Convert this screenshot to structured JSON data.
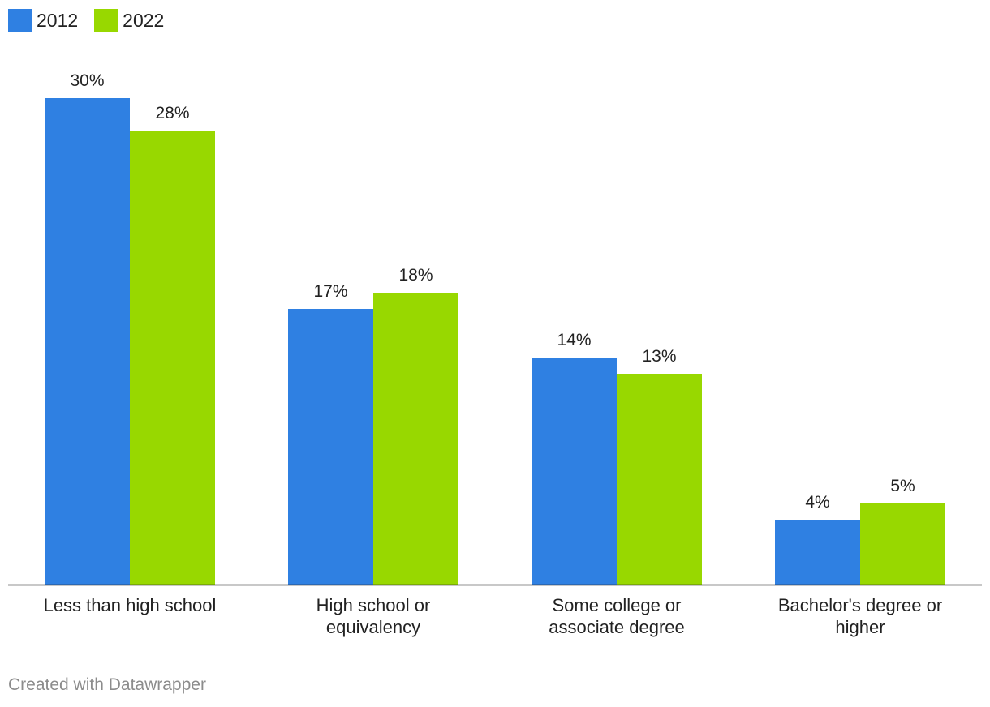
{
  "chart_data": {
    "type": "bar",
    "categories": [
      [
        "Less than high school"
      ],
      [
        "High school or",
        "equivalency"
      ],
      [
        "Some college or",
        "associate degree"
      ],
      [
        "Bachelor's degree or",
        "higher"
      ]
    ],
    "series": [
      {
        "name": "2012",
        "color": "#2f80e2",
        "values": [
          30,
          17,
          14,
          4
        ]
      },
      {
        "name": "2022",
        "color": "#98d800",
        "values": [
          28,
          18,
          13,
          5
        ]
      }
    ],
    "value_suffix": "%",
    "ylim": [
      0,
      30
    ],
    "legend_position": "top-left",
    "grid": false
  },
  "footer": {
    "text": "Created with Datawrapper"
  }
}
